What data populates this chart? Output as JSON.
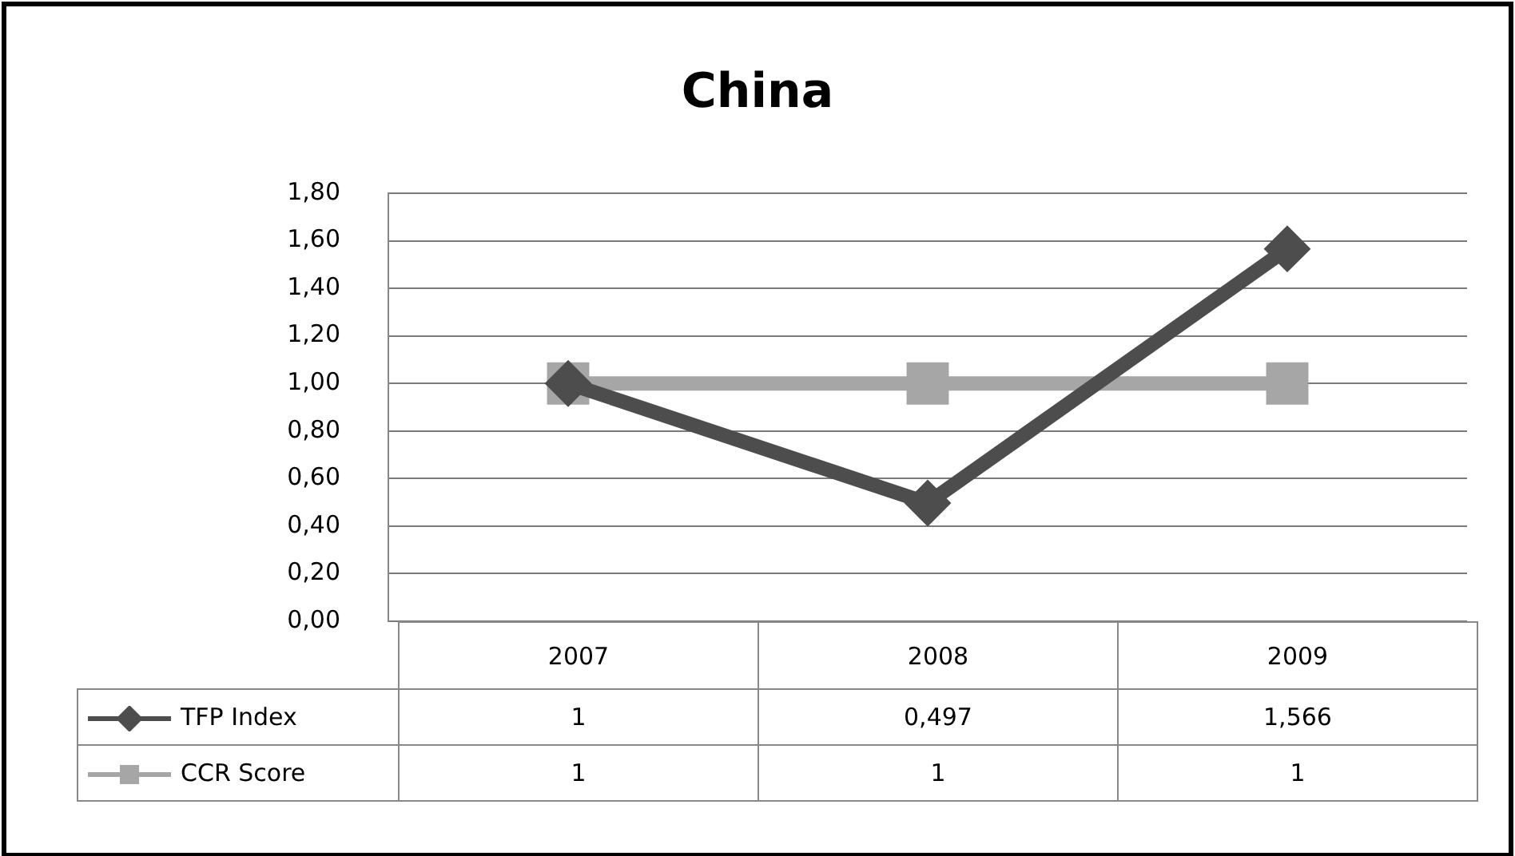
{
  "chart_data": {
    "type": "line",
    "title": "China",
    "categories": [
      "2007",
      "2008",
      "2009"
    ],
    "series": [
      {
        "name": "TFP Index",
        "color": "#4d4d4d",
        "marker": "diamond",
        "values": [
          1,
          0.497,
          1.566
        ],
        "value_labels": [
          "1",
          "0,497",
          "1,566"
        ]
      },
      {
        "name": "CCR Score",
        "color": "#a6a6a6",
        "marker": "square",
        "values": [
          1,
          1,
          1
        ],
        "value_labels": [
          "1",
          "1",
          "1"
        ]
      }
    ],
    "ylim": [
      0,
      1.8
    ],
    "yticks": [
      {
        "value": 0,
        "label": "0,00"
      },
      {
        "value": 0.2,
        "label": "0,20"
      },
      {
        "value": 0.4,
        "label": "0,40"
      },
      {
        "value": 0.6,
        "label": "0,60"
      },
      {
        "value": 0.8,
        "label": "0,80"
      },
      {
        "value": 1,
        "label": "1,00"
      },
      {
        "value": 1.2,
        "label": "1,20"
      },
      {
        "value": 1.4,
        "label": "1,40"
      },
      {
        "value": 1.6,
        "label": "1,60"
      },
      {
        "value": 1.8,
        "label": "1,80"
      }
    ],
    "grid": "y",
    "legend": "bottom left"
  }
}
